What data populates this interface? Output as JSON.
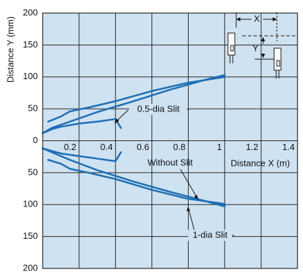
{
  "chart_data": {
    "type": "line",
    "y_label": "Distance Y (mm)",
    "x_label": "Distance X (m)",
    "xlim": [
      0,
      1.4
    ],
    "xticks": [
      0.2,
      0.4,
      0.6,
      0.8,
      1,
      1.2,
      1.4
    ],
    "ylim": [
      -200,
      200
    ],
    "yticks": [
      {
        "value": -200,
        "label": "200"
      },
      {
        "value": -150,
        "label": "150"
      },
      {
        "value": -100,
        "label": "100"
      },
      {
        "value": -50,
        "label": "50"
      },
      0,
      50,
      100,
      150,
      200
    ],
    "grid": true,
    "background": "#cfe2f2",
    "series": [
      {
        "name": "0.5-dia Slit",
        "color": "#1f6fb4",
        "x": [
          0,
          0.05,
          0.1,
          0.2,
          0.3,
          0.4,
          0.43,
          null,
          0,
          0.05,
          0.1,
          0.2,
          0.3,
          0.4,
          0.43
        ],
        "values": [
          12,
          18,
          22,
          27,
          30,
          34,
          20,
          null,
          -12,
          -16,
          -20,
          -24,
          -28,
          -32,
          -18
        ]
      },
      {
        "name": "1-dia Slit",
        "color": "#1f6fb4",
        "x": [
          0.03,
          0.1,
          0.15,
          0.25,
          0.4,
          0.6,
          0.8,
          1.0,
          1.0,
          null,
          0.03,
          0.1,
          0.15,
          0.25,
          0.4,
          0.6,
          0.8,
          1.0,
          1.0
        ],
        "values": [
          30,
          38,
          46,
          52,
          62,
          78,
          91,
          100,
          103,
          null,
          -30,
          -36,
          -44,
          -50,
          -60,
          -77,
          -91,
          -99,
          -103
        ]
      },
      {
        "name": "Without Slit",
        "color": "#1f6fb4",
        "x": [
          0,
          0.05,
          0.15,
          0.3,
          0.5,
          0.7,
          0.9,
          1.0,
          null,
          0,
          0.05,
          0.15,
          0.3,
          0.5,
          0.7,
          0.9,
          1.0
        ],
        "values": [
          12,
          20,
          30,
          45,
          62,
          80,
          96,
          103,
          null,
          -12,
          -18,
          -30,
          -46,
          -64,
          -80,
          -95,
          -103
        ]
      }
    ],
    "inset": {
      "x_label": "X",
      "y_label": "Y"
    }
  }
}
